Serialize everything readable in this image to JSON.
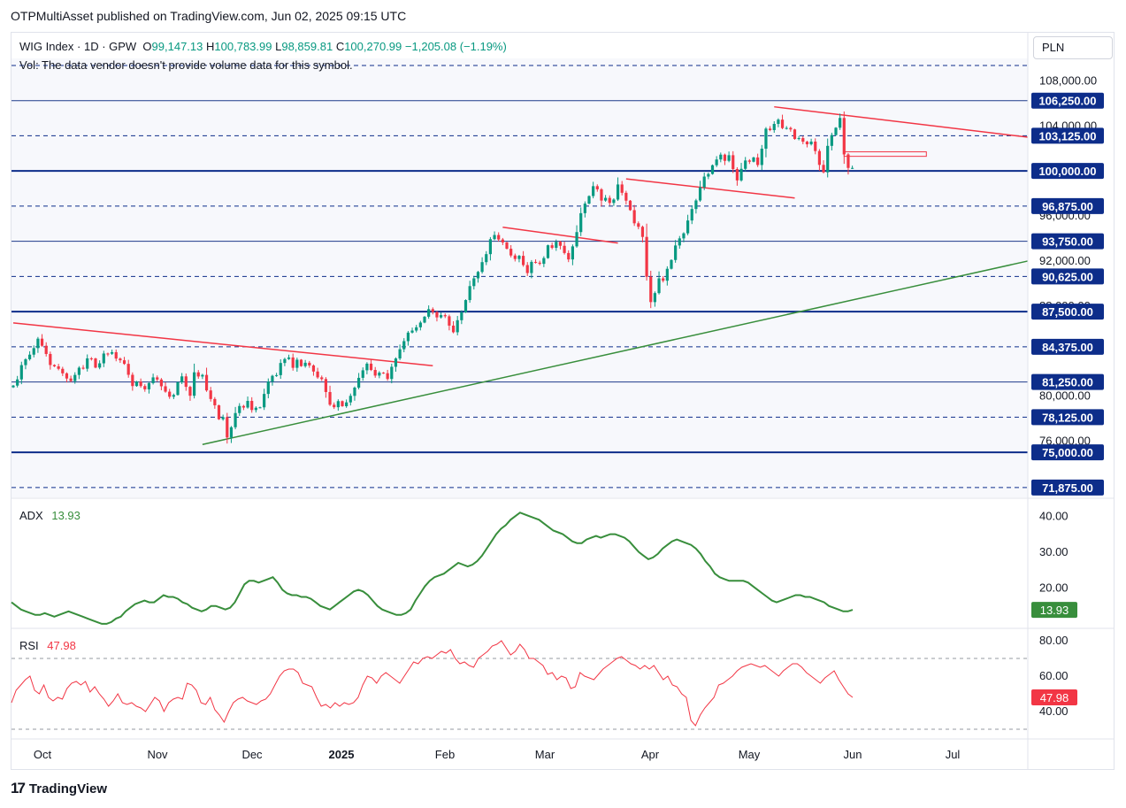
{
  "header": {
    "publisher": "OTPMultiAsset published on TradingView.com, Jun 02, 2025 09:15 UTC"
  },
  "legend": {
    "symbol": "WIG Index · 1D · GPW",
    "o_label": "O",
    "o": "99,147.13",
    "h_label": "H",
    "h": "100,783.99",
    "l_label": "L",
    "l": "98,859.81",
    "c_label": "C",
    "c": "100,270.99",
    "change": "−1,205.08 (−1.19%)",
    "vol_note": "Vol: The data vendor doesn't provide volume data for this symbol."
  },
  "currency": "PLN",
  "footer": {
    "brand": "TradingView",
    "logo": "tradingview-logo-icon"
  },
  "colors": {
    "up": "#089981",
    "down": "#f23645",
    "adx": "#388e3c",
    "rsi": "#f23645",
    "level_line": "#0d2d8a",
    "trend_red": "#f23645",
    "trend_green": "#388e3c"
  },
  "chart_data": [
    {
      "type": "candlestick",
      "title": "WIG Index · 1D · GPW",
      "currency": "PLN",
      "ylim": [
        71000,
        110000
      ],
      "x_ticks": [
        "Oct",
        "Nov",
        "Dec",
        "2025",
        "Feb",
        "Mar",
        "Apr",
        "May",
        "Jun",
        "Jul"
      ],
      "y_ticks": [
        "108,000.00",
        "104,000.00",
        "96,000.00",
        "92,000.00",
        "88,000.00",
        "80,000.00",
        "76,000.00"
      ],
      "y_tick_values": [
        108000,
        104000,
        96000,
        92000,
        88000,
        80000,
        76000
      ],
      "levels": [
        {
          "value": 109375,
          "label": "",
          "style": "dashed"
        },
        {
          "value": 106250,
          "label": "106,250.00",
          "style": "solid"
        },
        {
          "value": 103125,
          "label": "103,125.00",
          "style": "dashed"
        },
        {
          "value": 100000,
          "label": "100,000.00",
          "style": "solid-bold"
        },
        {
          "value": 96875,
          "label": "96,875.00",
          "style": "dashed"
        },
        {
          "value": 93750,
          "label": "93,750.00",
          "style": "solid"
        },
        {
          "value": 90625,
          "label": "90,625.00",
          "style": "dashed"
        },
        {
          "value": 87500,
          "label": "87,500.00",
          "style": "solid-bold"
        },
        {
          "value": 84375,
          "label": "84,375.00",
          "style": "dashed"
        },
        {
          "value": 81250,
          "label": "81,250.00",
          "style": "solid"
        },
        {
          "value": 78125,
          "label": "78,125.00",
          "style": "dashed"
        },
        {
          "value": 75000,
          "label": "75,000.00",
          "style": "solid-bold"
        },
        {
          "value": 71875,
          "label": "71,875.00",
          "style": "dashed"
        }
      ],
      "closes": [
        80930,
        81480,
        82750,
        83270,
        83680,
        84260,
        85100,
        84470,
        83740,
        82760,
        82640,
        82420,
        82020,
        81560,
        81330,
        81880,
        82520,
        82430,
        83350,
        83340,
        82530,
        82910,
        83780,
        83760,
        83900,
        83330,
        83180,
        82860,
        81890,
        80890,
        81290,
        80890,
        80600,
        81150,
        81660,
        81470,
        80870,
        80390,
        79940,
        80100,
        81230,
        81750,
        80820,
        80030,
        82110,
        81740,
        81880,
        80500,
        79740,
        79180,
        77940,
        78130,
        76320,
        77230,
        78490,
        79120,
        78980,
        79570,
        78760,
        78960,
        79000,
        80190,
        81290,
        81800,
        81860,
        82940,
        83290,
        83430,
        82510,
        83230,
        82660,
        82960,
        82720,
        82180,
        81660,
        81510,
        80360,
        79230,
        79010,
        79550,
        79100,
        79440,
        80020,
        80750,
        81620,
        82290,
        82880,
        82320,
        81820,
        82080,
        82030,
        81520,
        82600,
        83340,
        84160,
        84880,
        85640,
        85820,
        86110,
        86530,
        87050,
        87720,
        87470,
        86990,
        87190,
        87090,
        86260,
        85670,
        86740,
        87440,
        88530,
        89770,
        90460,
        91030,
        91900,
        92610,
        93940,
        94310,
        93910,
        93650,
        93090,
        92490,
        92180,
        92460,
        91640,
        90930,
        91920,
        91850,
        91750,
        92260,
        93400,
        93170,
        93710,
        93350,
        92710,
        92140,
        93300,
        94570,
        96250,
        97100,
        97770,
        98650,
        98370,
        97370,
        97610,
        97160,
        97460,
        98800,
        98060,
        97360,
        96520,
        95350,
        95040,
        94140,
        90600,
        88350,
        89150,
        90460,
        90250,
        91310,
        92090,
        93380,
        94010,
        94460,
        95600,
        96620,
        97380,
        98550,
        99500,
        99730,
        100510,
        101020,
        101450,
        100900,
        101400,
        100170,
        99160,
        100190,
        100930,
        100820,
        101200,
        100530,
        101980,
        103760,
        103630,
        104180,
        104560,
        103810,
        103820,
        103690,
        102840,
        102920,
        102600,
        102370,
        102610,
        101770,
        100540,
        99880,
        102230,
        103190,
        103840,
        104710,
        101470,
        100270,
        100270
      ],
      "trendlines": [
        {
          "color": "red",
          "from": {
            "date": "Sep 2024",
            "value": 86500
          },
          "to": {
            "date": "Jan 2025",
            "value": 82700
          }
        },
        {
          "color": "green",
          "from": {
            "date": "Nov 2024",
            "value": 75700
          },
          "to": {
            "date": "Jul 2025",
            "value": 92000
          }
        },
        {
          "color": "red",
          "from": {
            "date": "Feb 2025",
            "value": 95000
          },
          "to": {
            "date": "Mar 2025",
            "value": 93600
          }
        },
        {
          "color": "red",
          "from": {
            "date": "Mar 2025",
            "value": 99300
          },
          "to": {
            "date": "May 2025",
            "value": 97600
          }
        },
        {
          "color": "red",
          "from": {
            "date": "May 2025",
            "value": 105700
          },
          "to": {
            "date": "Jul 2025",
            "value": 103000
          }
        }
      ],
      "last_price": "100,270.99"
    },
    {
      "type": "line",
      "title": "ADX",
      "value_label": "13.93",
      "ylim": [
        9,
        45
      ],
      "y_ticks": [
        "40.00",
        "30.00",
        "20.00"
      ],
      "y_tick_values": [
        40,
        30,
        20
      ],
      "values": [
        16.0,
        15.0,
        14.0,
        13.5,
        13.0,
        12.5,
        12.5,
        13.0,
        12.5,
        12.0,
        12.5,
        13.0,
        13.5,
        13.0,
        12.5,
        12.0,
        11.5,
        11.0,
        10.5,
        10.0,
        10.0,
        10.5,
        11.5,
        12.0,
        13.5,
        14.5,
        15.5,
        16.0,
        16.5,
        16.0,
        16.0,
        17.0,
        18.0,
        17.5,
        17.5,
        17.0,
        16.0,
        15.5,
        14.5,
        14.0,
        13.5,
        14.0,
        15.0,
        15.0,
        14.5,
        14.0,
        14.5,
        16.0,
        18.5,
        21.0,
        22.0,
        22.0,
        21.5,
        22.0,
        22.5,
        23.0,
        21.5,
        19.5,
        18.5,
        18.0,
        18.0,
        17.5,
        17.5,
        17.0,
        16.0,
        15.0,
        14.5,
        14.0,
        15.0,
        16.0,
        17.0,
        18.0,
        19.0,
        19.5,
        19.0,
        18.0,
        16.5,
        15.0,
        14.0,
        13.5,
        13.0,
        12.5,
        12.5,
        13.0,
        14.0,
        16.5,
        18.5,
        20.5,
        22.0,
        23.0,
        23.5,
        24.0,
        25.0,
        26.0,
        27.0,
        26.5,
        26.0,
        26.5,
        27.5,
        29.0,
        31.0,
        33.0,
        35.0,
        36.5,
        37.5,
        39.0,
        40.0,
        41.0,
        40.5,
        40.0,
        39.5,
        39.0,
        38.0,
        37.0,
        36.0,
        35.5,
        35.0,
        34.0,
        33.0,
        32.5,
        32.5,
        33.5,
        34.0,
        34.5,
        34.0,
        34.5,
        35.0,
        35.0,
        34.5,
        34.0,
        33.0,
        31.5,
        30.0,
        29.0,
        28.0,
        28.5,
        29.5,
        31.0,
        32.0,
        33.0,
        33.5,
        33.0,
        32.5,
        32.0,
        31.0,
        29.5,
        27.5,
        26.0,
        24.0,
        23.0,
        22.5,
        22.0,
        22.0,
        22.0,
        22.0,
        21.5,
        20.5,
        19.5,
        18.5,
        17.5,
        16.5,
        16.0,
        16.5,
        17.0,
        17.5,
        18.0,
        18.0,
        17.5,
        17.5,
        17.0,
        16.5,
        16.0,
        15.0,
        14.5,
        14.0,
        13.5,
        13.5,
        13.9
      ]
    },
    {
      "type": "line",
      "title": "RSI",
      "value_label": "47.98",
      "ylim": [
        25,
        87
      ],
      "y_ticks": [
        "80.00",
        "60.00",
        "40.00"
      ],
      "y_tick_values": [
        80,
        60,
        40
      ],
      "bands": [
        70,
        30
      ],
      "values": [
        45,
        52,
        55,
        58,
        60,
        52,
        50,
        55,
        48,
        46,
        48,
        47,
        53,
        56,
        57,
        55,
        57,
        51,
        54,
        50,
        47,
        43,
        46,
        50,
        45,
        44,
        45,
        43,
        42,
        40,
        44,
        48,
        46,
        40,
        45,
        47,
        48,
        47,
        56,
        55,
        52,
        45,
        44,
        48,
        41,
        38,
        34,
        40,
        45,
        47,
        48,
        46,
        45,
        44,
        46,
        47,
        50,
        55,
        60,
        63,
        64,
        64,
        62,
        56,
        55,
        54,
        48,
        43,
        44,
        42,
        45,
        43,
        45,
        44,
        45,
        48,
        55,
        60,
        59,
        56,
        60,
        62,
        60,
        58,
        56,
        60,
        64,
        68,
        67,
        70,
        71,
        70,
        72,
        74,
        73,
        75,
        70,
        67,
        68,
        66,
        65,
        70,
        72,
        74,
        77,
        78,
        80,
        76,
        72,
        74,
        78,
        75,
        70,
        70,
        68,
        66,
        61,
        62,
        58,
        60,
        59,
        53,
        54,
        62,
        60,
        59,
        58,
        61,
        64,
        66,
        68,
        70,
        71,
        69,
        67,
        66,
        64,
        66,
        64,
        66,
        62,
        58,
        60,
        55,
        54,
        50,
        48,
        35,
        32,
        38,
        42,
        45,
        48,
        55,
        56,
        58,
        60,
        63,
        65,
        66,
        67,
        66,
        65,
        66,
        64,
        62,
        60,
        63,
        65,
        67,
        67,
        65,
        62,
        60,
        58,
        56,
        59,
        61,
        63,
        58,
        54,
        50,
        48
      ]
    }
  ]
}
